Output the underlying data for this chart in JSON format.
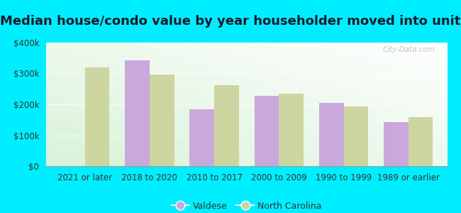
{
  "title": "Median house/condo value by year householder moved into unit",
  "categories": [
    "2021 or later",
    "2018 to 2020",
    "2010 to 2017",
    "2000 to 2009",
    "1990 to 1999",
    "1989 or earlier"
  ],
  "valdese_values": [
    0,
    343000,
    183000,
    228000,
    205000,
    143000
  ],
  "nc_values": [
    320000,
    296000,
    263000,
    235000,
    192000,
    158000
  ],
  "valdese_color": "#c9a8dc",
  "nc_color": "#cdd5a0",
  "outer_background": "#00eeff",
  "ylim": [
    0,
    400000
  ],
  "yticks": [
    0,
    100000,
    200000,
    300000,
    400000
  ],
  "ytick_labels": [
    "$0",
    "$100k",
    "$200k",
    "$300k",
    "$400k"
  ],
  "legend_labels": [
    "Valdese",
    "North Carolina"
  ],
  "watermark": "City-Data.com",
  "bar_width": 0.38,
  "title_fontsize": 13,
  "tick_fontsize": 8.5,
  "legend_fontsize": 9
}
